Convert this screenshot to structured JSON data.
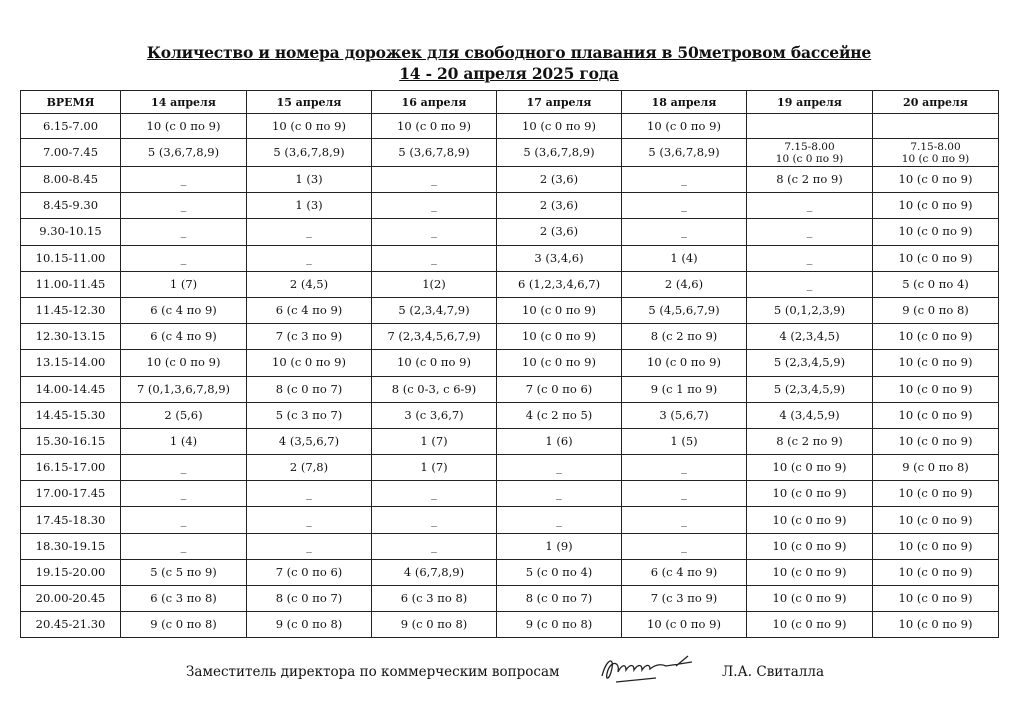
{
  "title": "Количество и номера дорожек для свободного плавания в 50метровом бассейне",
  "subtitle": "14 - 20 апреля  2025 года",
  "table": {
    "headers": [
      "ВРЕМЯ",
      "14 апреля",
      "15 апреля",
      "16 апреля",
      "17 апреля",
      "18 апреля",
      "19 апреля",
      "20 апреля"
    ],
    "rows": [
      [
        "6.15-7.00",
        "10 (с 0 по 9)",
        "10 (с 0 по 9)",
        "10 (с 0 по 9)",
        "10 (с 0 по 9)",
        "10 (с 0 по 9)",
        "",
        ""
      ],
      [
        "7.00-7.45",
        "5  (3,6,7,8,9)",
        "5 (3,6,7,8,9)",
        "5 (3,6,7,8,9)",
        "5 (3,6,7,8,9)",
        "5 (3,6,7,8,9)",
        "7.15-8.00\n10 (с 0 по 9)",
        "7.15-8.00\n10 (с 0 по 9)"
      ],
      [
        "8.00-8.45",
        "_",
        "1 (3)",
        "_",
        "2 (3,6)",
        "_",
        "8 (с 2 по 9)",
        "10 (с 0 по 9)"
      ],
      [
        "8.45-9.30",
        "_",
        "1 (3)",
        "_",
        "2 (3,6)",
        "_",
        "_",
        "10 (с 0 по 9)"
      ],
      [
        "9.30-10.15",
        "_",
        "_",
        "_",
        "2 (3,6)",
        "_",
        "_",
        "10 (с 0 по 9)"
      ],
      [
        "10.15-11.00",
        "_",
        "_",
        "_",
        "3 (3,4,6)",
        "1 (4)",
        "_",
        "10 (с 0 по 9)"
      ],
      [
        "11.00-11.45",
        "1 (7)",
        "2 (4,5)",
        "1(2)",
        "6 (1,2,3,4,6,7)",
        "2 (4,6)",
        "_",
        "5 (с 0 по 4)"
      ],
      [
        "11.45-12.30",
        "6 (с 4 по 9)",
        "6 (с 4 по 9)",
        "5 (2,3,4,7,9)",
        "10 (с 0 по 9)",
        "5 (4,5,6,7,9)",
        "5 (0,1,2,3,9)",
        "9 (с 0 по 8)"
      ],
      [
        "12.30-13.15",
        "6 (с 4 по 9)",
        "7 (с 3 по 9)",
        "7 (2,3,4,5,6,7,9)",
        "10 (с 0 по 9)",
        "8 (с 2 по 9)",
        "4 (2,3,4,5)",
        "10 (с 0 по 9)"
      ],
      [
        "13.15-14.00",
        "10 (с 0 по 9)",
        "10 (с 0 по 9)",
        "10 (с 0 по 9)",
        "10 (с 0 по 9)",
        "10 (с 0 по 9)",
        "5 (2,3,4,5,9)",
        "10 (с 0 по 9)"
      ],
      [
        "14.00-14.45",
        "7 (0,1,3,6,7,8,9)",
        "8 (с 0 по 7)",
        "8 (с 0-3, с 6-9)",
        "7 (с 0 по 6)",
        "9 (с 1 по 9)",
        "5 (2,3,4,5,9)",
        "10 (с 0 по 9)"
      ],
      [
        "14.45-15.30",
        "2 (5,6)",
        "5 (с 3 по 7)",
        "3 (с 3,6,7)",
        "4 (с 2 по 5)",
        "3 (5,6,7)",
        "4 (3,4,5,9)",
        "10 (с 0 по 9)"
      ],
      [
        "15.30-16.15",
        "1 (4)",
        "4 (3,5,6,7)",
        "1 (7)",
        "1 (6)",
        "1 (5)",
        "8 (с 2 по 9)",
        "10 (с 0 по 9)"
      ],
      [
        "16.15-17.00",
        "_",
        "2 (7,8)",
        "1 (7)",
        "_",
        "_",
        "10 (с 0 по 9)",
        "9 (с 0 по 8)"
      ],
      [
        "17.00-17.45",
        "_",
        "_",
        "_",
        "_",
        "_",
        "10 (с 0 по 9)",
        "10 (с 0 по 9)"
      ],
      [
        "17.45-18.30",
        "_",
        "_",
        "_",
        "_",
        "_",
        "10 (с 0 по 9)",
        "10 (с 0 по 9)"
      ],
      [
        "18.30-19.15",
        "_",
        "_",
        "_",
        "1 (9)",
        "_",
        "10 (с 0 по 9)",
        "10 (с 0 по 9)"
      ],
      [
        "19.15-20.00",
        "5 (с 5 по 9)",
        "7 (с 0 по 6)",
        "4 (6,7,8,9)",
        "5 (с 0 по 4)",
        "6 (с 4 по 9)",
        "10 (с 0 по 9)",
        "10 (с 0 по 9)"
      ],
      [
        "20.00-20.45",
        "6 (с 3 по 8)",
        "8 (с 0 по 7)",
        "6 (с 3 по 8)",
        "8 (с 0 по 7)",
        "7 (с 3 по 9)",
        "10 (с 0 по 9)",
        "10 (с 0 по 9)"
      ],
      [
        "20.45-21.30",
        "9 (с 0 по 8)",
        "9 (с 0 по 8)",
        "9 (с 0 по 8)",
        "9 (с 0 по 8)",
        "10 (с 0 по 9)",
        "10 (с 0 по 9)",
        "10 (с 0 по 9)"
      ]
    ]
  },
  "footer": {
    "position": "Заместитель директора по коммерческим вопросам",
    "name": "Л.А. Свиталла"
  }
}
